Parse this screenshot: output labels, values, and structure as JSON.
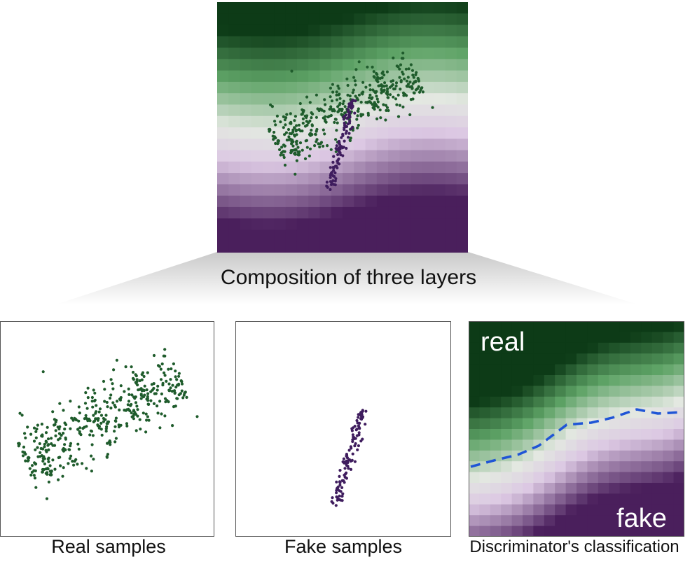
{
  "top_caption": "Composition of three layers",
  "captions": {
    "real": "Real samples",
    "fake": "Fake samples",
    "classification": "Discriminator's classification"
  },
  "labels": {
    "real": "real",
    "fake": "fake"
  },
  "colors": {
    "real_dot": "#1f5c2c",
    "fake_dot": "#3f1d5e",
    "boundary": "#1f55d6",
    "green_dark": "#0d3b17",
    "green_mid": "#5ea366",
    "neutral": "#e3e8e1",
    "purple_light": "#dcc8e3",
    "purple_dark": "#4a1f5c"
  }
}
